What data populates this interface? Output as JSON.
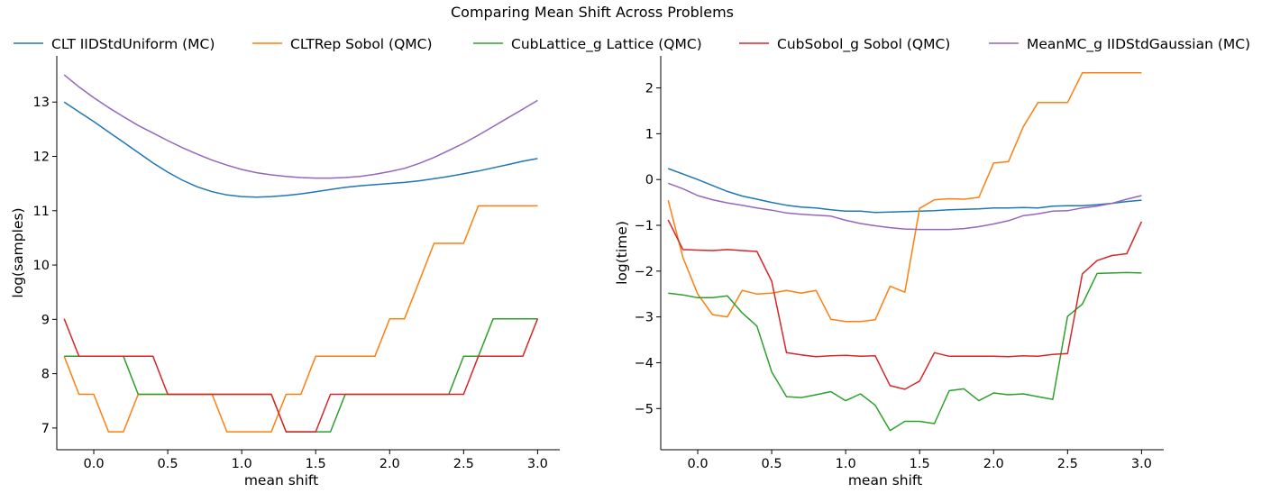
{
  "figure": {
    "title": "Comparing Mean Shift Across Problems"
  },
  "legend": {
    "placement": "top",
    "entries": [
      {
        "label": "CLT IIDStdUniform (MC)",
        "color": "#1f77b4"
      },
      {
        "label": "CLTRep Sobol (QMC)",
        "color": "#ff7f0e"
      },
      {
        "label": "CubLattice_g Lattice (QMC)",
        "color": "#2ca02c"
      },
      {
        "label": "CubSobol_g Sobol (QMC)",
        "color": "#d62728"
      },
      {
        "label": "MeanMC_g IIDStdGaussian (MC)",
        "color": "#9467bd"
      }
    ]
  },
  "chart_data": [
    {
      "type": "line",
      "xlabel": "mean shift",
      "ylabel": "log(samples)",
      "xlim": [
        -0.25,
        3.15
      ],
      "ylim": [
        6.6,
        13.85
      ],
      "grid": false,
      "xticks": [
        0.0,
        0.5,
        1.0,
        1.5,
        2.0,
        2.5,
        3.0
      ],
      "xtick_labels": [
        "0.0",
        "0.5",
        "1.0",
        "1.5",
        "2.0",
        "2.5",
        "3.0"
      ],
      "yticks": [
        7,
        8,
        9,
        10,
        11,
        12,
        13
      ],
      "ytick_labels": [
        "7",
        "8",
        "9",
        "10",
        "11",
        "12",
        "13"
      ],
      "x": [
        -0.2,
        -0.1,
        0.0,
        0.1,
        0.2,
        0.3,
        0.4,
        0.5,
        0.6,
        0.7,
        0.8,
        0.9,
        1.0,
        1.1,
        1.2,
        1.3,
        1.4,
        1.5,
        1.6,
        1.7,
        1.8,
        1.9,
        2.0,
        2.1,
        2.2,
        2.3,
        2.4,
        2.5,
        2.6,
        2.7,
        2.8,
        2.9,
        3.0
      ],
      "series": [
        {
          "name": "CLT IIDStdUniform (MC)",
          "color": "#1f77b4",
          "values": [
            13.0,
            12.82,
            12.64,
            12.45,
            12.26,
            12.07,
            11.88,
            11.71,
            11.56,
            11.44,
            11.35,
            11.29,
            11.26,
            11.25,
            11.26,
            11.28,
            11.31,
            11.35,
            11.39,
            11.43,
            11.46,
            11.48,
            11.5,
            11.52,
            11.55,
            11.59,
            11.63,
            11.68,
            11.73,
            11.79,
            11.85,
            11.91,
            11.96
          ]
        },
        {
          "name": "CLTRep Sobol (QMC)",
          "color": "#ff7f0e",
          "values": [
            8.32,
            7.62,
            7.62,
            6.93,
            6.93,
            7.62,
            7.62,
            7.62,
            7.62,
            7.62,
            7.62,
            6.93,
            6.93,
            6.93,
            6.93,
            7.62,
            7.62,
            8.32,
            8.32,
            8.32,
            8.32,
            8.32,
            9.01,
            9.01,
            9.7,
            10.4,
            10.4,
            10.4,
            11.09,
            11.09,
            11.09,
            11.09,
            11.09
          ]
        },
        {
          "name": "CubLattice_g Lattice (QMC)",
          "color": "#2ca02c",
          "values": [
            8.32,
            8.32,
            8.32,
            8.32,
            8.32,
            7.62,
            7.62,
            7.62,
            7.62,
            7.62,
            7.62,
            7.62,
            7.62,
            7.62,
            7.62,
            6.93,
            6.93,
            6.93,
            6.93,
            7.62,
            7.62,
            7.62,
            7.62,
            7.62,
            7.62,
            7.62,
            7.62,
            8.32,
            8.32,
            9.01,
            9.01,
            9.01,
            9.01
          ]
        },
        {
          "name": "CubSobol_g Sobol (QMC)",
          "color": "#d62728",
          "values": [
            9.01,
            8.32,
            8.32,
            8.32,
            8.32,
            8.32,
            8.32,
            7.62,
            7.62,
            7.62,
            7.62,
            7.62,
            7.62,
            7.62,
            7.62,
            6.93,
            6.93,
            6.93,
            7.62,
            7.62,
            7.62,
            7.62,
            7.62,
            7.62,
            7.62,
            7.62,
            7.62,
            7.62,
            8.32,
            8.32,
            8.32,
            8.32,
            9.01
          ]
        },
        {
          "name": "MeanMC_g IIDStdGaussian (MC)",
          "color": "#9467bd",
          "values": [
            13.5,
            13.28,
            13.08,
            12.9,
            12.73,
            12.57,
            12.43,
            12.29,
            12.16,
            12.04,
            11.93,
            11.84,
            11.76,
            11.7,
            11.66,
            11.63,
            11.61,
            11.6,
            11.6,
            11.61,
            11.63,
            11.67,
            11.72,
            11.78,
            11.87,
            11.98,
            12.11,
            12.24,
            12.39,
            12.55,
            12.71,
            12.87,
            13.03
          ]
        }
      ]
    },
    {
      "type": "line",
      "xlabel": "mean shift",
      "ylabel": "log(time)",
      "xlim": [
        -0.25,
        3.15
      ],
      "ylim": [
        -5.9,
        2.7
      ],
      "grid": false,
      "xticks": [
        0.0,
        0.5,
        1.0,
        1.5,
        2.0,
        2.5,
        3.0
      ],
      "xtick_labels": [
        "0.0",
        "0.5",
        "1.0",
        "1.5",
        "2.0",
        "2.5",
        "3.0"
      ],
      "yticks": [
        -5,
        -4,
        -3,
        -2,
        -1,
        0,
        1,
        2
      ],
      "ytick_labels": [
        "−5",
        "−4",
        "−3",
        "−2",
        "−1",
        "0",
        "1",
        "2"
      ],
      "x": [
        -0.2,
        -0.1,
        0.0,
        0.1,
        0.2,
        0.3,
        0.4,
        0.5,
        0.6,
        0.7,
        0.8,
        0.9,
        1.0,
        1.1,
        1.2,
        1.3,
        1.4,
        1.5,
        1.6,
        1.7,
        1.8,
        1.9,
        2.0,
        2.1,
        2.2,
        2.3,
        2.4,
        2.5,
        2.6,
        2.7,
        2.8,
        2.9,
        3.0
      ],
      "series": [
        {
          "name": "CLT IIDStdUniform (MC)",
          "color": "#1f77b4",
          "values": [
            0.24,
            0.12,
            0.0,
            -0.13,
            -0.26,
            -0.36,
            -0.43,
            -0.5,
            -0.56,
            -0.6,
            -0.62,
            -0.66,
            -0.69,
            -0.69,
            -0.72,
            -0.71,
            -0.7,
            -0.69,
            -0.68,
            -0.66,
            -0.65,
            -0.64,
            -0.62,
            -0.62,
            -0.61,
            -0.62,
            -0.58,
            -0.57,
            -0.57,
            -0.55,
            -0.52,
            -0.48,
            -0.45
          ]
        },
        {
          "name": "CLTRep Sobol (QMC)",
          "color": "#ff7f0e",
          "values": [
            -0.45,
            -1.7,
            -2.5,
            -2.95,
            -3.0,
            -2.42,
            -2.5,
            -2.48,
            -2.42,
            -2.48,
            -2.42,
            -3.05,
            -3.1,
            -3.1,
            -3.06,
            -2.33,
            -2.46,
            -0.63,
            -0.44,
            -0.42,
            -0.43,
            -0.39,
            0.36,
            0.39,
            1.15,
            1.68,
            1.68,
            1.68,
            2.33,
            2.33,
            2.33,
            2.33,
            2.33
          ]
        },
        {
          "name": "CubLattice_g Lattice (QMC)",
          "color": "#2ca02c",
          "values": [
            -2.48,
            -2.52,
            -2.58,
            -2.58,
            -2.54,
            -2.91,
            -3.2,
            -4.2,
            -4.74,
            -4.76,
            -4.7,
            -4.63,
            -4.83,
            -4.68,
            -4.93,
            -5.48,
            -5.28,
            -5.28,
            -5.33,
            -4.61,
            -4.57,
            -4.83,
            -4.66,
            -4.7,
            -4.68,
            -4.74,
            -4.8,
            -2.99,
            -2.72,
            -2.05,
            -2.04,
            -2.03,
            -2.04
          ]
        },
        {
          "name": "CubSobol_g Sobol (QMC)",
          "color": "#d62728",
          "values": [
            -0.88,
            -1.53,
            -1.54,
            -1.55,
            -1.53,
            -1.55,
            -1.57,
            -2.22,
            -3.78,
            -3.83,
            -3.87,
            -3.85,
            -3.84,
            -3.86,
            -3.85,
            -4.5,
            -4.58,
            -4.4,
            -3.78,
            -3.86,
            -3.86,
            -3.86,
            -3.86,
            -3.87,
            -3.85,
            -3.86,
            -3.82,
            -3.8,
            -2.06,
            -1.77,
            -1.66,
            -1.62,
            -0.92
          ]
        },
        {
          "name": "MeanMC_g IIDStdGaussian (MC)",
          "color": "#9467bd",
          "values": [
            -0.08,
            -0.2,
            -0.35,
            -0.44,
            -0.51,
            -0.56,
            -0.62,
            -0.67,
            -0.73,
            -0.76,
            -0.78,
            -0.8,
            -0.89,
            -0.96,
            -1.01,
            -1.05,
            -1.08,
            -1.09,
            -1.09,
            -1.09,
            -1.07,
            -1.03,
            -0.97,
            -0.9,
            -0.79,
            -0.75,
            -0.69,
            -0.68,
            -0.62,
            -0.58,
            -0.52,
            -0.43,
            -0.35
          ]
        }
      ]
    }
  ]
}
